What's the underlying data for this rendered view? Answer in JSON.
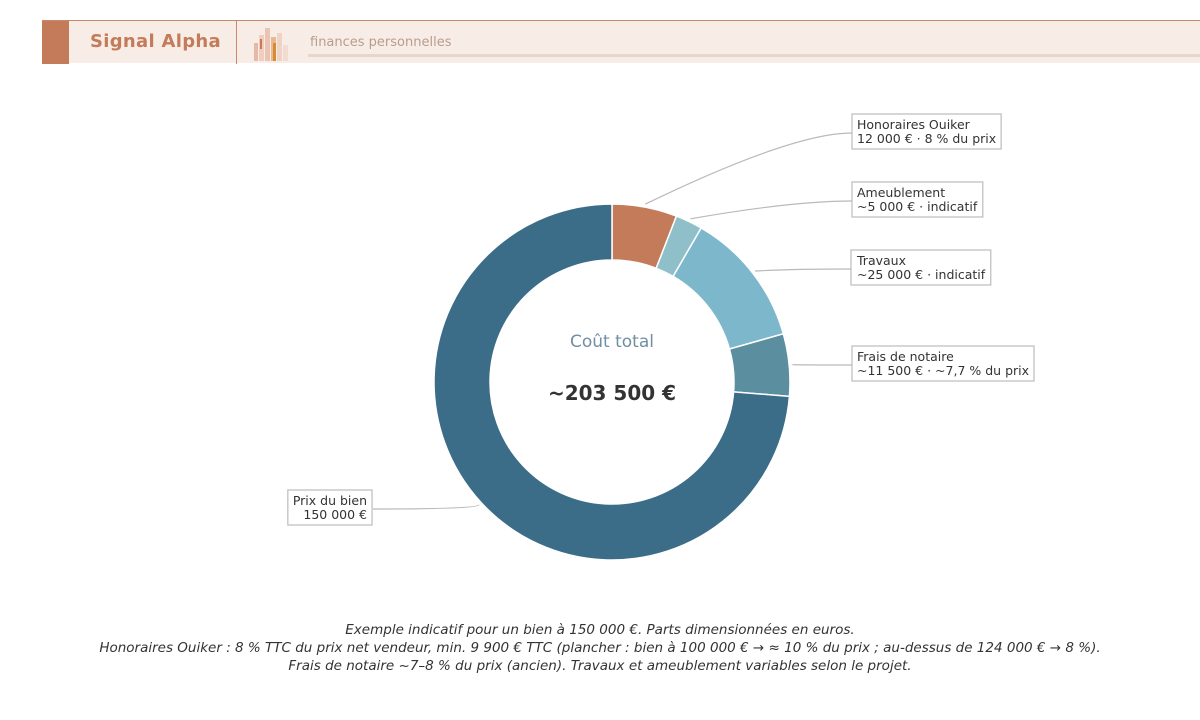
{
  "header": {
    "brand": "Signal Alpha",
    "subtitle": "finances personnelles",
    "logo_icon": "bar-chart-logo-icon",
    "accent_color": "#c47b5a"
  },
  "chart_data": {
    "type": "pie",
    "variant": "donut",
    "center_label": "Coût total",
    "center_value": "~203 500 €",
    "total": 203500,
    "slices": [
      {
        "name": "Honoraires Ouiker",
        "value": 12000,
        "detail": "12 000 € · 8 % du prix",
        "color": "#c47b5a"
      },
      {
        "name": "Ameublement",
        "value": 5000,
        "detail": "~5 000 € · indicatif",
        "color": "#8fc0c9"
      },
      {
        "name": "Travaux",
        "value": 25000,
        "detail": "~25 000 € · indicatif",
        "color": "#7db7cc"
      },
      {
        "name": "Frais de notaire",
        "value": 11500,
        "detail": "~11 500 € · ~7,7 % du prix",
        "color": "#5b8fa0"
      },
      {
        "name": "Prix du bien",
        "value": 150000,
        "detail": "150 000 €",
        "color": "#3b6d89"
      }
    ]
  },
  "footnote": {
    "line1": "Exemple indicatif pour un bien à 150 000 €. Parts dimensionnées en euros.",
    "line2": "Honoraires Ouiker : 8 % TTC du prix net vendeur, min. 9 900 € TTC (plancher : bien à 100 000 € → ≈ 10 % du prix ; au-dessus de 124 000 € → 8 %).",
    "line3": "Frais de notaire ~7–8 % du prix (ancien). Travaux et ameublement variables selon le projet."
  }
}
